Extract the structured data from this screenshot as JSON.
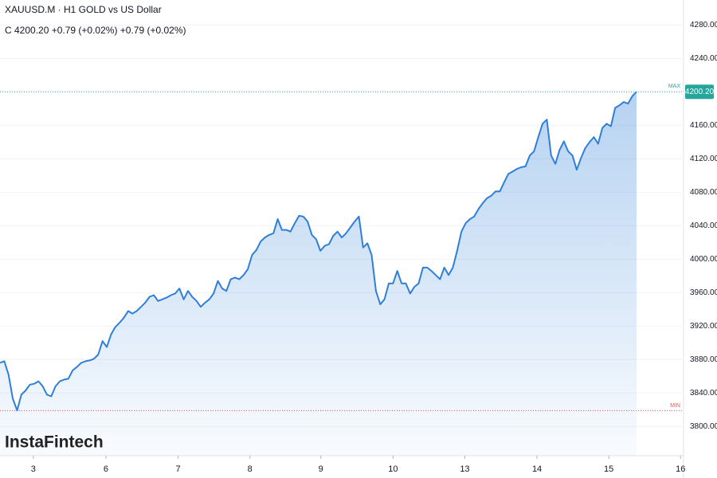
{
  "chart_data": {
    "type": "area",
    "title": "XAUUSD.M · H1 GOLD vs US Dollar",
    "subtitle": "C 4200.20 +0.79 (+0.02%) +0.79 (+0.02%)",
    "watermark": "InstaFintech",
    "color": "#2f7fd8",
    "x": [
      0,
      1,
      2,
      3,
      4,
      5,
      6,
      7,
      8,
      9,
      10,
      11,
      12,
      13,
      14,
      15,
      16,
      17,
      18,
      19,
      20,
      21,
      22,
      23,
      24,
      25,
      26,
      27,
      28,
      29,
      30,
      31,
      32,
      33,
      34,
      35,
      36,
      37,
      38,
      39,
      40,
      41,
      42,
      43,
      44,
      45,
      46,
      47,
      48,
      49,
      50,
      51,
      52,
      53,
      54,
      55,
      56,
      57,
      58,
      59,
      60,
      61,
      62,
      63,
      64,
      65,
      66,
      67,
      68,
      69,
      70,
      71,
      72,
      73,
      74,
      75,
      76,
      77,
      78,
      79,
      80,
      81,
      82,
      83,
      84,
      85,
      86,
      87,
      88,
      89,
      90,
      91,
      92,
      93,
      94,
      95,
      96,
      97,
      98,
      99,
      100,
      101,
      102,
      103,
      104,
      105,
      106,
      107,
      108,
      109,
      110,
      111,
      112,
      113,
      114,
      115,
      116,
      117,
      118,
      119,
      120,
      121,
      122,
      123,
      124,
      125,
      126,
      127,
      128,
      129,
      130,
      131,
      132,
      133,
      134,
      135,
      136,
      137,
      138,
      139,
      140,
      141,
      142,
      143,
      144,
      145,
      146,
      147,
      148,
      149
    ],
    "values": [
      3876,
      3878,
      3862,
      3833,
      3819,
      3838,
      3843,
      3850,
      3851,
      3854,
      3848,
      3838,
      3836,
      3848,
      3854,
      3856,
      3857,
      3867,
      3871,
      3876,
      3878,
      3879,
      3881,
      3886,
      3902,
      3895,
      3910,
      3919,
      3924,
      3930,
      3938,
      3935,
      3938,
      3943,
      3948,
      3955,
      3957,
      3950,
      3952,
      3954,
      3957,
      3959,
      3965,
      3952,
      3962,
      3955,
      3950,
      3943,
      3948,
      3952,
      3959,
      3974,
      3965,
      3962,
      3976,
      3978,
      3976,
      3981,
      3988,
      4005,
      4011,
      4021,
      4026,
      4029,
      4031,
      4048,
      4035,
      4035,
      4033,
      4043,
      4052,
      4051,
      4045,
      4029,
      4024,
      4010,
      4016,
      4018,
      4028,
      4033,
      4026,
      4031,
      4038,
      4045,
      4051,
      4014,
      4019,
      4005,
      3962,
      3946,
      3952,
      3971,
      3971,
      3986,
      3971,
      3971,
      3959,
      3967,
      3971,
      3990,
      3990,
      3986,
      3981,
      3976,
      3990,
      3981,
      3990,
      4010,
      4033,
      4043,
      4048,
      4051,
      4060,
      4067,
      4073,
      4076,
      4081,
      4081,
      4092,
      4102,
      4105,
      4108,
      4110,
      4111,
      4124,
      4129,
      4146,
      4162,
      4167,
      4124,
      4114,
      4131,
      4141,
      4129,
      4124,
      4107,
      4121,
      4133,
      4140,
      4146,
      4138,
      4157,
      4162,
      4159,
      4181,
      4184,
      4188,
      4186,
      4195,
      4200.2
    ],
    "xlim": [
      0,
      160
    ],
    "xticks": [
      {
        "value": 7.8,
        "label": "3"
      },
      {
        "value": 24.8,
        "label": "6"
      },
      {
        "value": 41.7,
        "label": "7"
      },
      {
        "value": 58.5,
        "label": "8"
      },
      {
        "value": 75.1,
        "label": "9"
      },
      {
        "value": 92,
        "label": "10"
      },
      {
        "value": 108.8,
        "label": "13"
      },
      {
        "value": 125.7,
        "label": "14"
      },
      {
        "value": 142.5,
        "label": "15"
      },
      {
        "value": 159.3,
        "label": "16"
      }
    ],
    "ylim": [
      3765,
      4310
    ],
    "yticks": [
      {
        "value": 3800,
        "label": "3800.00"
      },
      {
        "value": 3840,
        "label": "3840.00"
      },
      {
        "value": 3880,
        "label": "3880.00"
      },
      {
        "value": 3920,
        "label": "3920.00"
      },
      {
        "value": 3960,
        "label": "3960.00"
      },
      {
        "value": 4000,
        "label": "4000.00"
      },
      {
        "value": 4040,
        "label": "4040.00"
      },
      {
        "value": 4080,
        "label": "4080.00"
      },
      {
        "value": 4120,
        "label": "4120.00"
      },
      {
        "value": 4160,
        "label": "4160.00"
      },
      {
        "value": 4240,
        "label": "4240.00"
      },
      {
        "value": 4280,
        "label": "4280.00"
      }
    ],
    "max_line": {
      "value": 4200.2,
      "label": "4200.20",
      "tag": "MAX",
      "color": "#26a69a"
    },
    "min_line": {
      "value": 3819,
      "tag": "MIN",
      "color": "#ef5350"
    }
  }
}
